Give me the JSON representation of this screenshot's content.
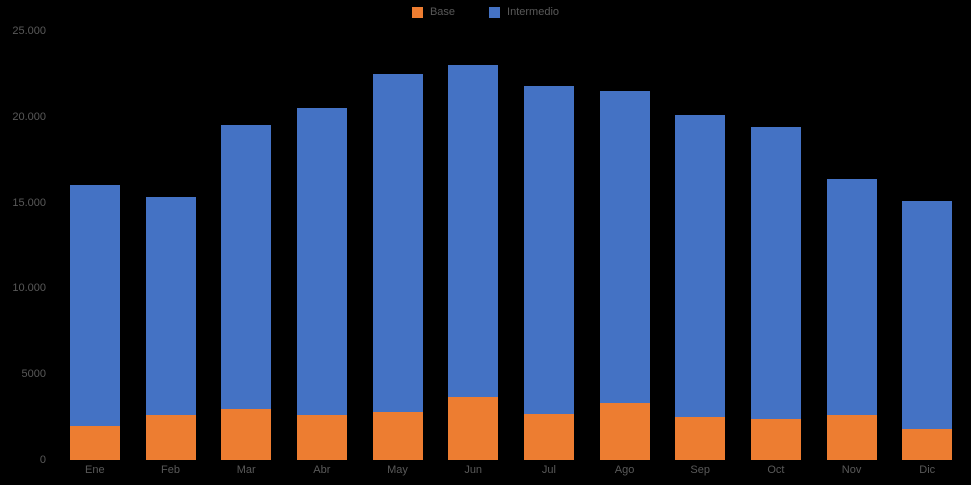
{
  "chart_data": {
    "type": "bar",
    "stacked": true,
    "title": "",
    "xlabel": "",
    "ylabel": "",
    "categories": [
      "Ene",
      "Feb",
      "Mar",
      "Abr",
      "May",
      "Jun",
      "Jul",
      "Ago",
      "Sep",
      "Oct",
      "Nov",
      "Dic"
    ],
    "series": [
      {
        "name": "Base",
        "color": "#ED7D31",
        "values": [
          2000,
          2600,
          3000,
          2600,
          2800,
          3700,
          2700,
          3300,
          2500,
          2400,
          2600,
          1800
        ]
      },
      {
        "name": "Intermedio",
        "color": "#4472C4",
        "values": [
          14000,
          12700,
          16500,
          17900,
          19700,
          19300,
          19100,
          18200,
          17600,
          17000,
          13800,
          13300
        ]
      }
    ],
    "ylim": [
      0,
      25000
    ],
    "yticks": [
      {
        "value": 0,
        "label": "0"
      },
      {
        "value": 5000,
        "label": "5000"
      },
      {
        "value": 10000,
        "label": "10.000"
      },
      {
        "value": 15000,
        "label": "15.000"
      },
      {
        "value": 20000,
        "label": "20.000"
      },
      {
        "value": 25000,
        "label": "25.000"
      }
    ],
    "grid": false,
    "legend_position": "top-center",
    "text_color": "#595959",
    "background": "#000000"
  }
}
